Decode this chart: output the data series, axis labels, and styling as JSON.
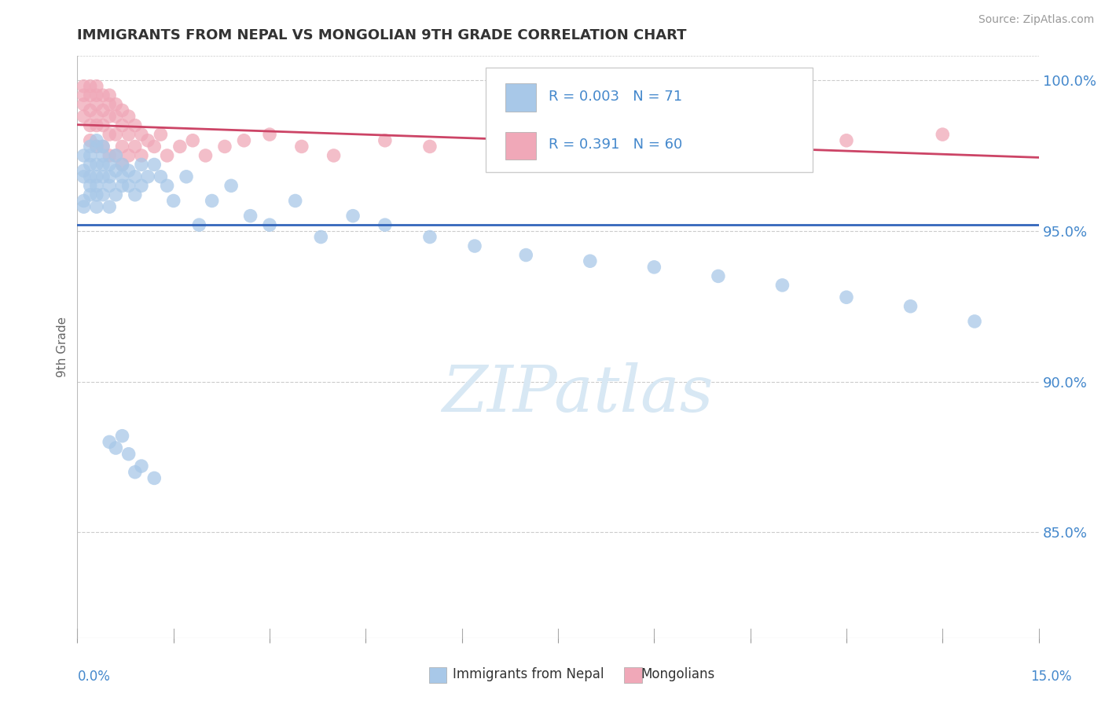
{
  "title": "IMMIGRANTS FROM NEPAL VS MONGOLIAN 9TH GRADE CORRELATION CHART",
  "source": "Source: ZipAtlas.com",
  "ylabel": "9th Grade",
  "R_blue": 0.003,
  "N_blue": 71,
  "R_pink": 0.391,
  "N_pink": 60,
  "blue_color": "#A8C8E8",
  "pink_color": "#F0A8B8",
  "blue_line_color": "#3366BB",
  "pink_line_color": "#CC4466",
  "background_color": "#FFFFFF",
  "watermark_text": "ZIPatlas",
  "watermark_color": "#D8E8F4",
  "xlim": [
    0.0,
    0.15
  ],
  "ylim": [
    0.815,
    1.008
  ],
  "yticks": [
    0.85,
    0.9,
    0.95,
    1.0
  ],
  "nepal_x": [
    0.001,
    0.001,
    0.001,
    0.001,
    0.001,
    0.002,
    0.002,
    0.002,
    0.002,
    0.002,
    0.002,
    0.003,
    0.003,
    0.003,
    0.003,
    0.003,
    0.003,
    0.003,
    0.004,
    0.004,
    0.004,
    0.004,
    0.004,
    0.005,
    0.005,
    0.005,
    0.005,
    0.006,
    0.006,
    0.006,
    0.007,
    0.007,
    0.007,
    0.008,
    0.008,
    0.009,
    0.009,
    0.01,
    0.01,
    0.011,
    0.012,
    0.013,
    0.014,
    0.015,
    0.017,
    0.019,
    0.021,
    0.024,
    0.027,
    0.03,
    0.034,
    0.038,
    0.043,
    0.048,
    0.055,
    0.062,
    0.07,
    0.08,
    0.09,
    0.1,
    0.11,
    0.12,
    0.13,
    0.14,
    0.005,
    0.006,
    0.007,
    0.008,
    0.009,
    0.01,
    0.012
  ],
  "nepal_y": [
    0.97,
    0.975,
    0.968,
    0.96,
    0.958,
    0.972,
    0.978,
    0.965,
    0.962,
    0.975,
    0.968,
    0.978,
    0.972,
    0.968,
    0.98,
    0.965,
    0.958,
    0.962,
    0.975,
    0.968,
    0.972,
    0.962,
    0.978,
    0.968,
    0.972,
    0.965,
    0.958,
    0.97,
    0.975,
    0.962,
    0.972,
    0.965,
    0.968,
    0.97,
    0.965,
    0.968,
    0.962,
    0.972,
    0.965,
    0.968,
    0.972,
    0.968,
    0.965,
    0.96,
    0.968,
    0.952,
    0.96,
    0.965,
    0.955,
    0.952,
    0.96,
    0.948,
    0.955,
    0.952,
    0.948,
    0.945,
    0.942,
    0.94,
    0.938,
    0.935,
    0.932,
    0.928,
    0.925,
    0.92,
    0.88,
    0.878,
    0.882,
    0.876,
    0.87,
    0.872,
    0.868
  ],
  "mongolian_x": [
    0.001,
    0.001,
    0.001,
    0.001,
    0.002,
    0.002,
    0.002,
    0.002,
    0.002,
    0.003,
    0.003,
    0.003,
    0.003,
    0.003,
    0.003,
    0.004,
    0.004,
    0.004,
    0.004,
    0.005,
    0.005,
    0.005,
    0.005,
    0.005,
    0.006,
    0.006,
    0.006,
    0.006,
    0.007,
    0.007,
    0.007,
    0.007,
    0.008,
    0.008,
    0.008,
    0.009,
    0.009,
    0.01,
    0.01,
    0.011,
    0.012,
    0.013,
    0.014,
    0.016,
    0.018,
    0.02,
    0.023,
    0.026,
    0.03,
    0.035,
    0.04,
    0.048,
    0.055,
    0.065,
    0.075,
    0.085,
    0.095,
    0.105,
    0.12,
    0.135
  ],
  "mongolian_y": [
    0.998,
    0.995,
    0.992,
    0.988,
    0.998,
    0.995,
    0.99,
    0.985,
    0.98,
    0.998,
    0.995,
    0.992,
    0.988,
    0.985,
    0.978,
    0.995,
    0.99,
    0.985,
    0.978,
    0.995,
    0.992,
    0.988,
    0.982,
    0.975,
    0.992,
    0.988,
    0.982,
    0.975,
    0.99,
    0.985,
    0.978,
    0.972,
    0.988,
    0.982,
    0.975,
    0.985,
    0.978,
    0.982,
    0.975,
    0.98,
    0.978,
    0.982,
    0.975,
    0.978,
    0.98,
    0.975,
    0.978,
    0.98,
    0.982,
    0.978,
    0.975,
    0.98,
    0.978,
    0.982,
    0.978,
    0.98,
    0.982,
    0.978,
    0.98,
    0.982
  ]
}
